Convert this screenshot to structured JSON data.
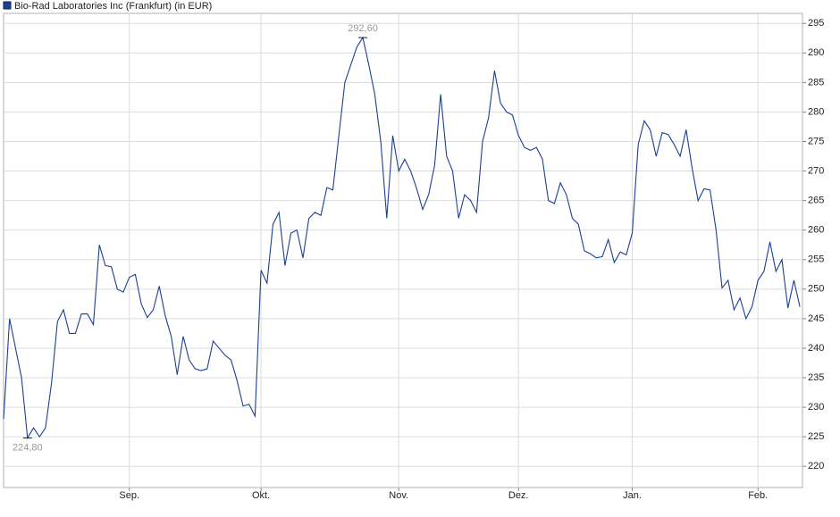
{
  "chart_data": {
    "type": "line",
    "grid": true,
    "ylim": [
      216.4,
      296.7
    ],
    "yticks": [
      220,
      225,
      230,
      235,
      240,
      245,
      250,
      255,
      260,
      265,
      270,
      275,
      280,
      285,
      290,
      295
    ],
    "categories": [
      null,
      null,
      null,
      null,
      null,
      null,
      null,
      null,
      null,
      null,
      null,
      null,
      null,
      null,
      null,
      null,
      null,
      null,
      null,
      null,
      null,
      "Sep.",
      null,
      null,
      null,
      null,
      null,
      null,
      null,
      null,
      null,
      null,
      null,
      null,
      null,
      null,
      null,
      null,
      null,
      null,
      null,
      null,
      null,
      "Okt.",
      null,
      null,
      null,
      null,
      null,
      null,
      null,
      null,
      null,
      null,
      null,
      null,
      null,
      null,
      null,
      null,
      null,
      null,
      null,
      null,
      null,
      null,
      "Nov.",
      null,
      null,
      null,
      null,
      null,
      null,
      null,
      null,
      null,
      null,
      null,
      null,
      null,
      null,
      null,
      null,
      null,
      null,
      null,
      "Dez.",
      null,
      null,
      null,
      null,
      null,
      null,
      null,
      null,
      null,
      null,
      null,
      null,
      null,
      null,
      null,
      null,
      null,
      null,
      "Jan.",
      null,
      null,
      null,
      null,
      null,
      null,
      null,
      null,
      null,
      null,
      null,
      null,
      null,
      null,
      null,
      null,
      null,
      null,
      null,
      null,
      "Feb.",
      null,
      null,
      null,
      null,
      null,
      null,
      null
    ],
    "series": [
      {
        "name": "Bio-Rad Laboratories Inc (Frankfurt) (in EUR)",
        "color": "#1c3f94",
        "values": [
          228,
          245,
          240,
          235,
          224.8,
          226.5,
          225,
          226.5,
          234,
          244.5,
          246.5,
          242.5,
          242.5,
          245.8,
          245.8,
          244,
          257.5,
          254,
          253.8,
          250,
          249.5,
          252,
          252.5,
          247.5,
          245.2,
          246.5,
          250.5,
          245.5,
          242,
          235.5,
          242,
          238,
          236.5,
          236.2,
          236.5,
          241.2,
          240,
          238.8,
          238,
          234.5,
          230.2,
          230.5,
          228.5,
          253.2,
          251,
          261,
          263,
          254,
          259.5,
          260,
          255.3,
          262,
          263,
          262.5,
          267.2,
          266.8,
          276,
          285,
          288,
          291,
          292.6,
          288,
          283,
          275,
          262,
          276,
          270,
          272,
          270,
          267,
          263.5,
          266,
          271,
          283,
          272.5,
          270,
          262,
          266,
          265,
          263,
          275,
          279,
          287,
          281.5,
          280,
          279.5,
          276,
          274,
          273.5,
          274,
          272,
          265,
          264.5,
          268,
          266,
          262,
          261,
          256.5,
          256,
          255.3,
          255.5,
          258.4,
          254.5,
          256.3,
          255.8,
          259.5,
          274.5,
          278.5,
          277,
          272.5,
          276.5,
          276.2,
          274.5,
          272.5,
          277,
          270.5,
          265,
          267,
          266.8,
          260,
          250.2,
          251.5,
          246.5,
          248.5,
          245,
          247,
          251.5,
          253,
          258,
          253,
          255,
          246.8,
          251.5,
          247
        ],
        "value_labels": [
          null,
          null,
          null,
          null,
          "224,80",
          null,
          null,
          null,
          null,
          null,
          null,
          null,
          null,
          null,
          null,
          null,
          null,
          null,
          null,
          null,
          null,
          null,
          null,
          null,
          null,
          null,
          null,
          null,
          null,
          null,
          null,
          null,
          null,
          null,
          null,
          null,
          null,
          null,
          null,
          null,
          null,
          null,
          null,
          null,
          null,
          null,
          null,
          null,
          null,
          null,
          null,
          null,
          null,
          null,
          null,
          null,
          null,
          null,
          null,
          null,
          "292,60",
          null,
          null,
          null,
          null,
          null,
          null,
          null,
          null,
          null,
          null,
          null,
          null,
          null,
          null,
          null,
          null,
          null,
          null,
          null,
          null,
          null,
          null,
          null,
          null,
          null,
          null,
          null,
          null,
          null,
          null,
          null,
          null,
          null,
          null,
          null,
          null,
          null,
          null,
          null,
          null,
          null,
          null,
          null,
          null,
          null,
          null,
          null,
          null,
          null,
          null,
          null,
          null,
          null,
          null,
          null,
          null,
          null,
          null,
          null,
          null,
          null,
          null,
          null,
          null,
          null,
          null,
          null,
          null,
          null,
          null,
          null,
          null,
          null
        ]
      }
    ]
  }
}
